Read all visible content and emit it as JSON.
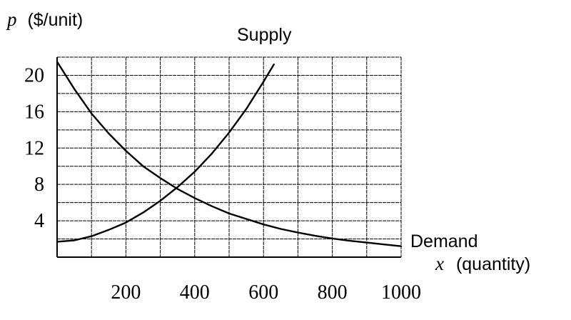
{
  "chart_data": {
    "type": "line",
    "ylabel_var": "p",
    "ylabel_unit": "($/unit)",
    "xlabel_var": "x",
    "xlabel_unit": "(quantity)",
    "x_ticks": [
      "200",
      "400",
      "600",
      "800",
      "1000"
    ],
    "y_ticks": [
      "4",
      "8",
      "12",
      "16",
      "20"
    ],
    "xlim": [
      0,
      1000
    ],
    "ylim": [
      0,
      22
    ],
    "grid": true,
    "series": [
      {
        "name": "Supply",
        "color": "#000000",
        "x": [
          0,
          50,
          100,
          150,
          200,
          250,
          300,
          350,
          400,
          450,
          500,
          550,
          600,
          630
        ],
        "y": [
          1.7,
          1.85,
          2.3,
          3.0,
          3.8,
          4.9,
          6.2,
          7.7,
          9.4,
          11.4,
          13.7,
          16.3,
          19.3,
          21.2
        ]
      },
      {
        "name": "Demand",
        "color": "#000000",
        "x": [
          0,
          50,
          100,
          150,
          200,
          250,
          300,
          350,
          400,
          450,
          500,
          550,
          600,
          650,
          700,
          750,
          800,
          850,
          900,
          950,
          1000
        ],
        "y": [
          21.5,
          18.5,
          15.8,
          13.6,
          11.7,
          10.0,
          8.7,
          7.5,
          6.5,
          5.6,
          4.8,
          4.2,
          3.6,
          3.1,
          2.7,
          2.35,
          2.05,
          1.8,
          1.6,
          1.4,
          1.2
        ]
      }
    ]
  }
}
